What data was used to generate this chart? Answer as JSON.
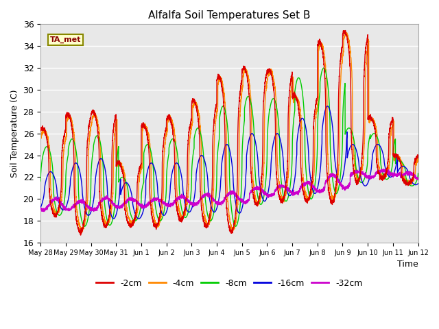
{
  "title": "Alfalfa Soil Temperatures Set B",
  "ylabel": "Soil Temperature (C)",
  "xlabel": "Time",
  "ylim": [
    16,
    36
  ],
  "plot_bg_color": "#e8e8e8",
  "ta_met_label": "TA_met",
  "legend_entries": [
    "-2cm",
    "-4cm",
    "-8cm",
    "-16cm",
    "-32cm"
  ],
  "line_colors": [
    "#dd0000",
    "#ff8800",
    "#00cc00",
    "#0000dd",
    "#cc00cc"
  ],
  "xtick_labels": [
    "May 28",
    "May 29",
    "May 30",
    "May 31",
    "Jun 1",
    "Jun 2",
    "Jun 3",
    "Jun 4",
    "Jun 5",
    "Jun 6",
    "Jun 7",
    "Jun 8",
    "Jun 9",
    "Jun 10",
    "Jun 11",
    "Jun 12"
  ],
  "num_days": 15,
  "points_per_day": 288,
  "yticks": [
    16,
    18,
    20,
    22,
    24,
    26,
    28,
    30,
    32,
    34,
    36
  ],
  "peak_values_2cm": [
    26.5,
    27.8,
    28.0,
    23.3,
    26.8,
    27.5,
    29.0,
    31.2,
    32.0,
    31.8,
    29.5,
    34.4,
    35.3,
    27.5,
    24.0
  ],
  "trough_values_2cm": [
    18.5,
    17.0,
    17.5,
    17.6,
    17.5,
    18.1,
    17.5,
    17.0,
    19.5,
    19.8,
    19.8,
    19.7,
    21.5,
    21.9,
    21.4
  ],
  "peak_values_4cm": [
    26.2,
    27.5,
    27.7,
    23.2,
    26.7,
    27.4,
    28.8,
    31.0,
    31.8,
    31.7,
    29.3,
    34.2,
    35.1,
    27.3,
    23.8
  ],
  "trough_values_4cm": [
    18.7,
    17.2,
    17.7,
    17.8,
    17.6,
    18.3,
    17.7,
    17.2,
    19.6,
    20.0,
    20.0,
    20.0,
    21.7,
    22.0,
    21.5
  ],
  "peak_values_8cm": [
    24.8,
    25.5,
    25.8,
    22.0,
    25.0,
    25.5,
    26.5,
    28.5,
    29.4,
    29.2,
    31.1,
    32.0,
    26.5,
    26.0,
    23.5
  ],
  "trough_values_8cm": [
    18.5,
    17.5,
    17.6,
    18.0,
    18.0,
    18.3,
    18.0,
    17.5,
    19.5,
    19.8,
    20.0,
    20.5,
    21.5,
    21.8,
    21.2
  ],
  "peak_values_16cm": [
    22.5,
    23.3,
    23.7,
    21.5,
    23.3,
    23.3,
    24.0,
    25.0,
    26.0,
    26.0,
    27.4,
    28.5,
    25.0,
    25.0,
    23.0
  ],
  "trough_values_16cm": [
    19.0,
    18.5,
    18.2,
    18.2,
    18.5,
    18.8,
    18.8,
    18.7,
    19.8,
    20.3,
    20.5,
    21.5,
    21.2,
    22.0,
    21.3
  ],
  "peak_values_32cm": [
    20.0,
    19.8,
    20.1,
    20.0,
    20.0,
    20.2,
    20.4,
    20.6,
    21.0,
    21.2,
    21.5,
    22.2,
    22.5,
    22.6,
    22.4
  ],
  "trough_values_32cm": [
    19.0,
    19.0,
    19.2,
    19.3,
    19.4,
    19.5,
    19.6,
    19.7,
    20.3,
    20.5,
    20.7,
    21.0,
    22.0,
    22.2,
    21.8
  ]
}
